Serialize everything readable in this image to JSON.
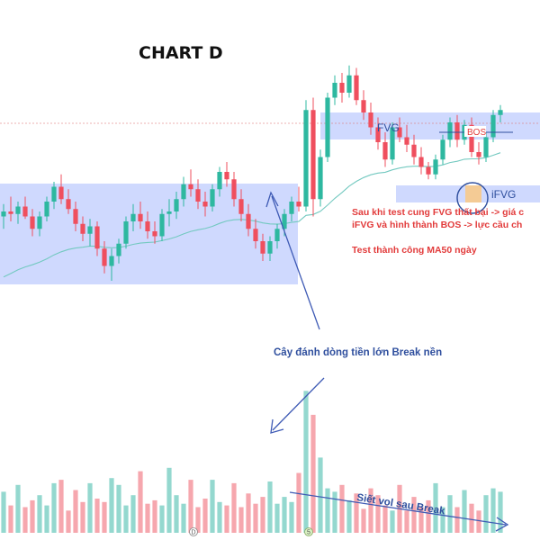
{
  "title": "CHART D",
  "colors": {
    "up": "#2eb8a0",
    "down": "#ef4f5e",
    "vol_up": "#94d8cf",
    "vol_down": "#f6a7ae",
    "zone": "#c7d2fe",
    "arrow": "#3f5bb5",
    "ma50": "#73c9c0",
    "note_red": "#e23b3b",
    "note_blue": "#2f4f9e",
    "circle_fill": "#f7c98a"
  },
  "zones": {
    "fvg_label": "FVG",
    "ifvg_label": "iFVG",
    "bos_label": "BOS"
  },
  "annotations": {
    "note_line1": "Sau khi test cung FVG thất bại -> giá c",
    "note_line2": "iFVG và hình thành BOS -> lực cầu ch",
    "note_line3": "Test thành công MA50 ngày",
    "break_note": "Cây đánh dòng tiền lớn Break nền",
    "squeeze_note": "Siết vol sau Break"
  },
  "markers": [
    "D",
    "5"
  ],
  "chart_data": {
    "type": "candlestick",
    "title": "CHART D",
    "ma_label": "MA50",
    "ohlc": [
      [
        33.8,
        34.3,
        33.3,
        34.0
      ],
      [
        34.0,
        34.6,
        33.6,
        33.9
      ],
      [
        33.9,
        34.4,
        33.5,
        34.2
      ],
      [
        34.2,
        34.6,
        33.7,
        33.8
      ],
      [
        33.8,
        34.1,
        33.0,
        33.3
      ],
      [
        33.3,
        34.0,
        33.0,
        33.8
      ],
      [
        33.8,
        34.6,
        33.6,
        34.4
      ],
      [
        34.4,
        35.2,
        34.1,
        35.0
      ],
      [
        35.0,
        35.5,
        34.3,
        34.5
      ],
      [
        34.5,
        34.9,
        33.9,
        34.1
      ],
      [
        34.1,
        34.4,
        33.2,
        33.5
      ],
      [
        33.5,
        33.8,
        32.8,
        33.1
      ],
      [
        33.1,
        33.7,
        32.6,
        33.4
      ],
      [
        33.4,
        33.6,
        32.2,
        32.5
      ],
      [
        32.5,
        32.8,
        31.5,
        31.8
      ],
      [
        31.8,
        32.5,
        31.2,
        32.2
      ],
      [
        32.2,
        32.9,
        31.9,
        32.7
      ],
      [
        32.7,
        33.8,
        32.5,
        33.6
      ],
      [
        33.6,
        34.3,
        33.2,
        33.9
      ],
      [
        33.9,
        34.4,
        33.3,
        33.6
      ],
      [
        33.6,
        34.0,
        32.9,
        33.2
      ],
      [
        33.2,
        33.6,
        32.7,
        33.0
      ],
      [
        33.0,
        34.1,
        32.8,
        33.9
      ],
      [
        33.9,
        34.5,
        33.4,
        34.0
      ],
      [
        34.0,
        34.8,
        33.7,
        34.5
      ],
      [
        34.5,
        35.4,
        34.2,
        35.1
      ],
      [
        35.1,
        35.7,
        34.6,
        34.9
      ],
      [
        34.9,
        35.3,
        34.1,
        34.4
      ],
      [
        34.4,
        34.8,
        33.8,
        34.2
      ],
      [
        34.2,
        35.1,
        34.0,
        34.9
      ],
      [
        34.9,
        35.8,
        34.6,
        35.6
      ],
      [
        35.6,
        36.0,
        35.0,
        35.3
      ],
      [
        35.3,
        35.6,
        34.2,
        34.5
      ],
      [
        34.5,
        34.9,
        33.6,
        33.9
      ],
      [
        33.9,
        34.3,
        33.0,
        33.3
      ],
      [
        33.3,
        33.7,
        32.5,
        32.8
      ],
      [
        32.8,
        33.1,
        32.0,
        32.3
      ],
      [
        32.3,
        33.0,
        32.0,
        32.8
      ],
      [
        32.8,
        33.5,
        32.5,
        33.3
      ],
      [
        33.3,
        34.1,
        33.0,
        33.9
      ],
      [
        33.9,
        34.6,
        33.6,
        34.4
      ],
      [
        34.4,
        35.0,
        34.0,
        34.2
      ],
      [
        34.2,
        38.5,
        34.0,
        38.1
      ],
      [
        38.1,
        38.6,
        33.8,
        34.5
      ],
      [
        34.5,
        36.5,
        34.2,
        36.2
      ],
      [
        36.2,
        38.8,
        36.0,
        38.6
      ],
      [
        38.6,
        39.5,
        38.3,
        39.2
      ],
      [
        39.2,
        39.6,
        38.4,
        38.8
      ],
      [
        38.8,
        39.9,
        38.6,
        39.5
      ],
      [
        39.5,
        39.8,
        38.3,
        38.5
      ],
      [
        38.5,
        38.9,
        37.7,
        38.0
      ],
      [
        38.0,
        38.4,
        37.1,
        37.4
      ],
      [
        37.4,
        37.8,
        36.5,
        36.8
      ],
      [
        36.8,
        37.2,
        35.8,
        36.1
      ],
      [
        36.1,
        37.6,
        35.9,
        37.4
      ],
      [
        37.4,
        37.8,
        36.8,
        37.0
      ],
      [
        37.0,
        37.5,
        36.4,
        36.7
      ],
      [
        36.7,
        37.1,
        35.9,
        36.2
      ],
      [
        36.2,
        36.6,
        35.5,
        35.8
      ],
      [
        35.8,
        36.0,
        35.3,
        35.5
      ],
      [
        35.5,
        36.3,
        35.3,
        36.1
      ],
      [
        36.1,
        37.1,
        35.9,
        36.9
      ],
      [
        36.9,
        37.8,
        36.6,
        37.6
      ],
      [
        37.6,
        37.9,
        36.6,
        36.9
      ],
      [
        36.9,
        37.7,
        36.7,
        37.5
      ],
      [
        37.5,
        37.8,
        36.2,
        36.4
      ],
      [
        36.4,
        36.8,
        35.9,
        36.2
      ],
      [
        36.2,
        37.2,
        36.0,
        37.0
      ],
      [
        37.0,
        38.1,
        36.8,
        37.9
      ],
      [
        37.9,
        38.3,
        37.6,
        38.1
      ]
    ],
    "volume": [
      2.4,
      1.6,
      2.8,
      1.5,
      1.9,
      2.2,
      1.6,
      2.9,
      3.1,
      1.3,
      2.5,
      1.8,
      2.9,
      2.0,
      1.8,
      3.2,
      2.8,
      1.6,
      2.2,
      3.6,
      1.7,
      1.9,
      1.6,
      3.8,
      2.2,
      1.7,
      3.1,
      1.5,
      2.0,
      3.1,
      1.8,
      1.6,
      2.9,
      1.5,
      2.3,
      1.7,
      2.1,
      3.0,
      1.7,
      2.1,
      1.8,
      3.5,
      8.3,
      6.9,
      4.4,
      2.6,
      2.4,
      2.8,
      1.9,
      2.3,
      1.4,
      2.6,
      2.2,
      1.6,
      1.3,
      2.8,
      1.3,
      2.1,
      1.5,
      1.9,
      2.9,
      1.5,
      2.2,
      1.5,
      2.5,
      1.7,
      1.3,
      2.2,
      2.6,
      2.4
    ]
  }
}
